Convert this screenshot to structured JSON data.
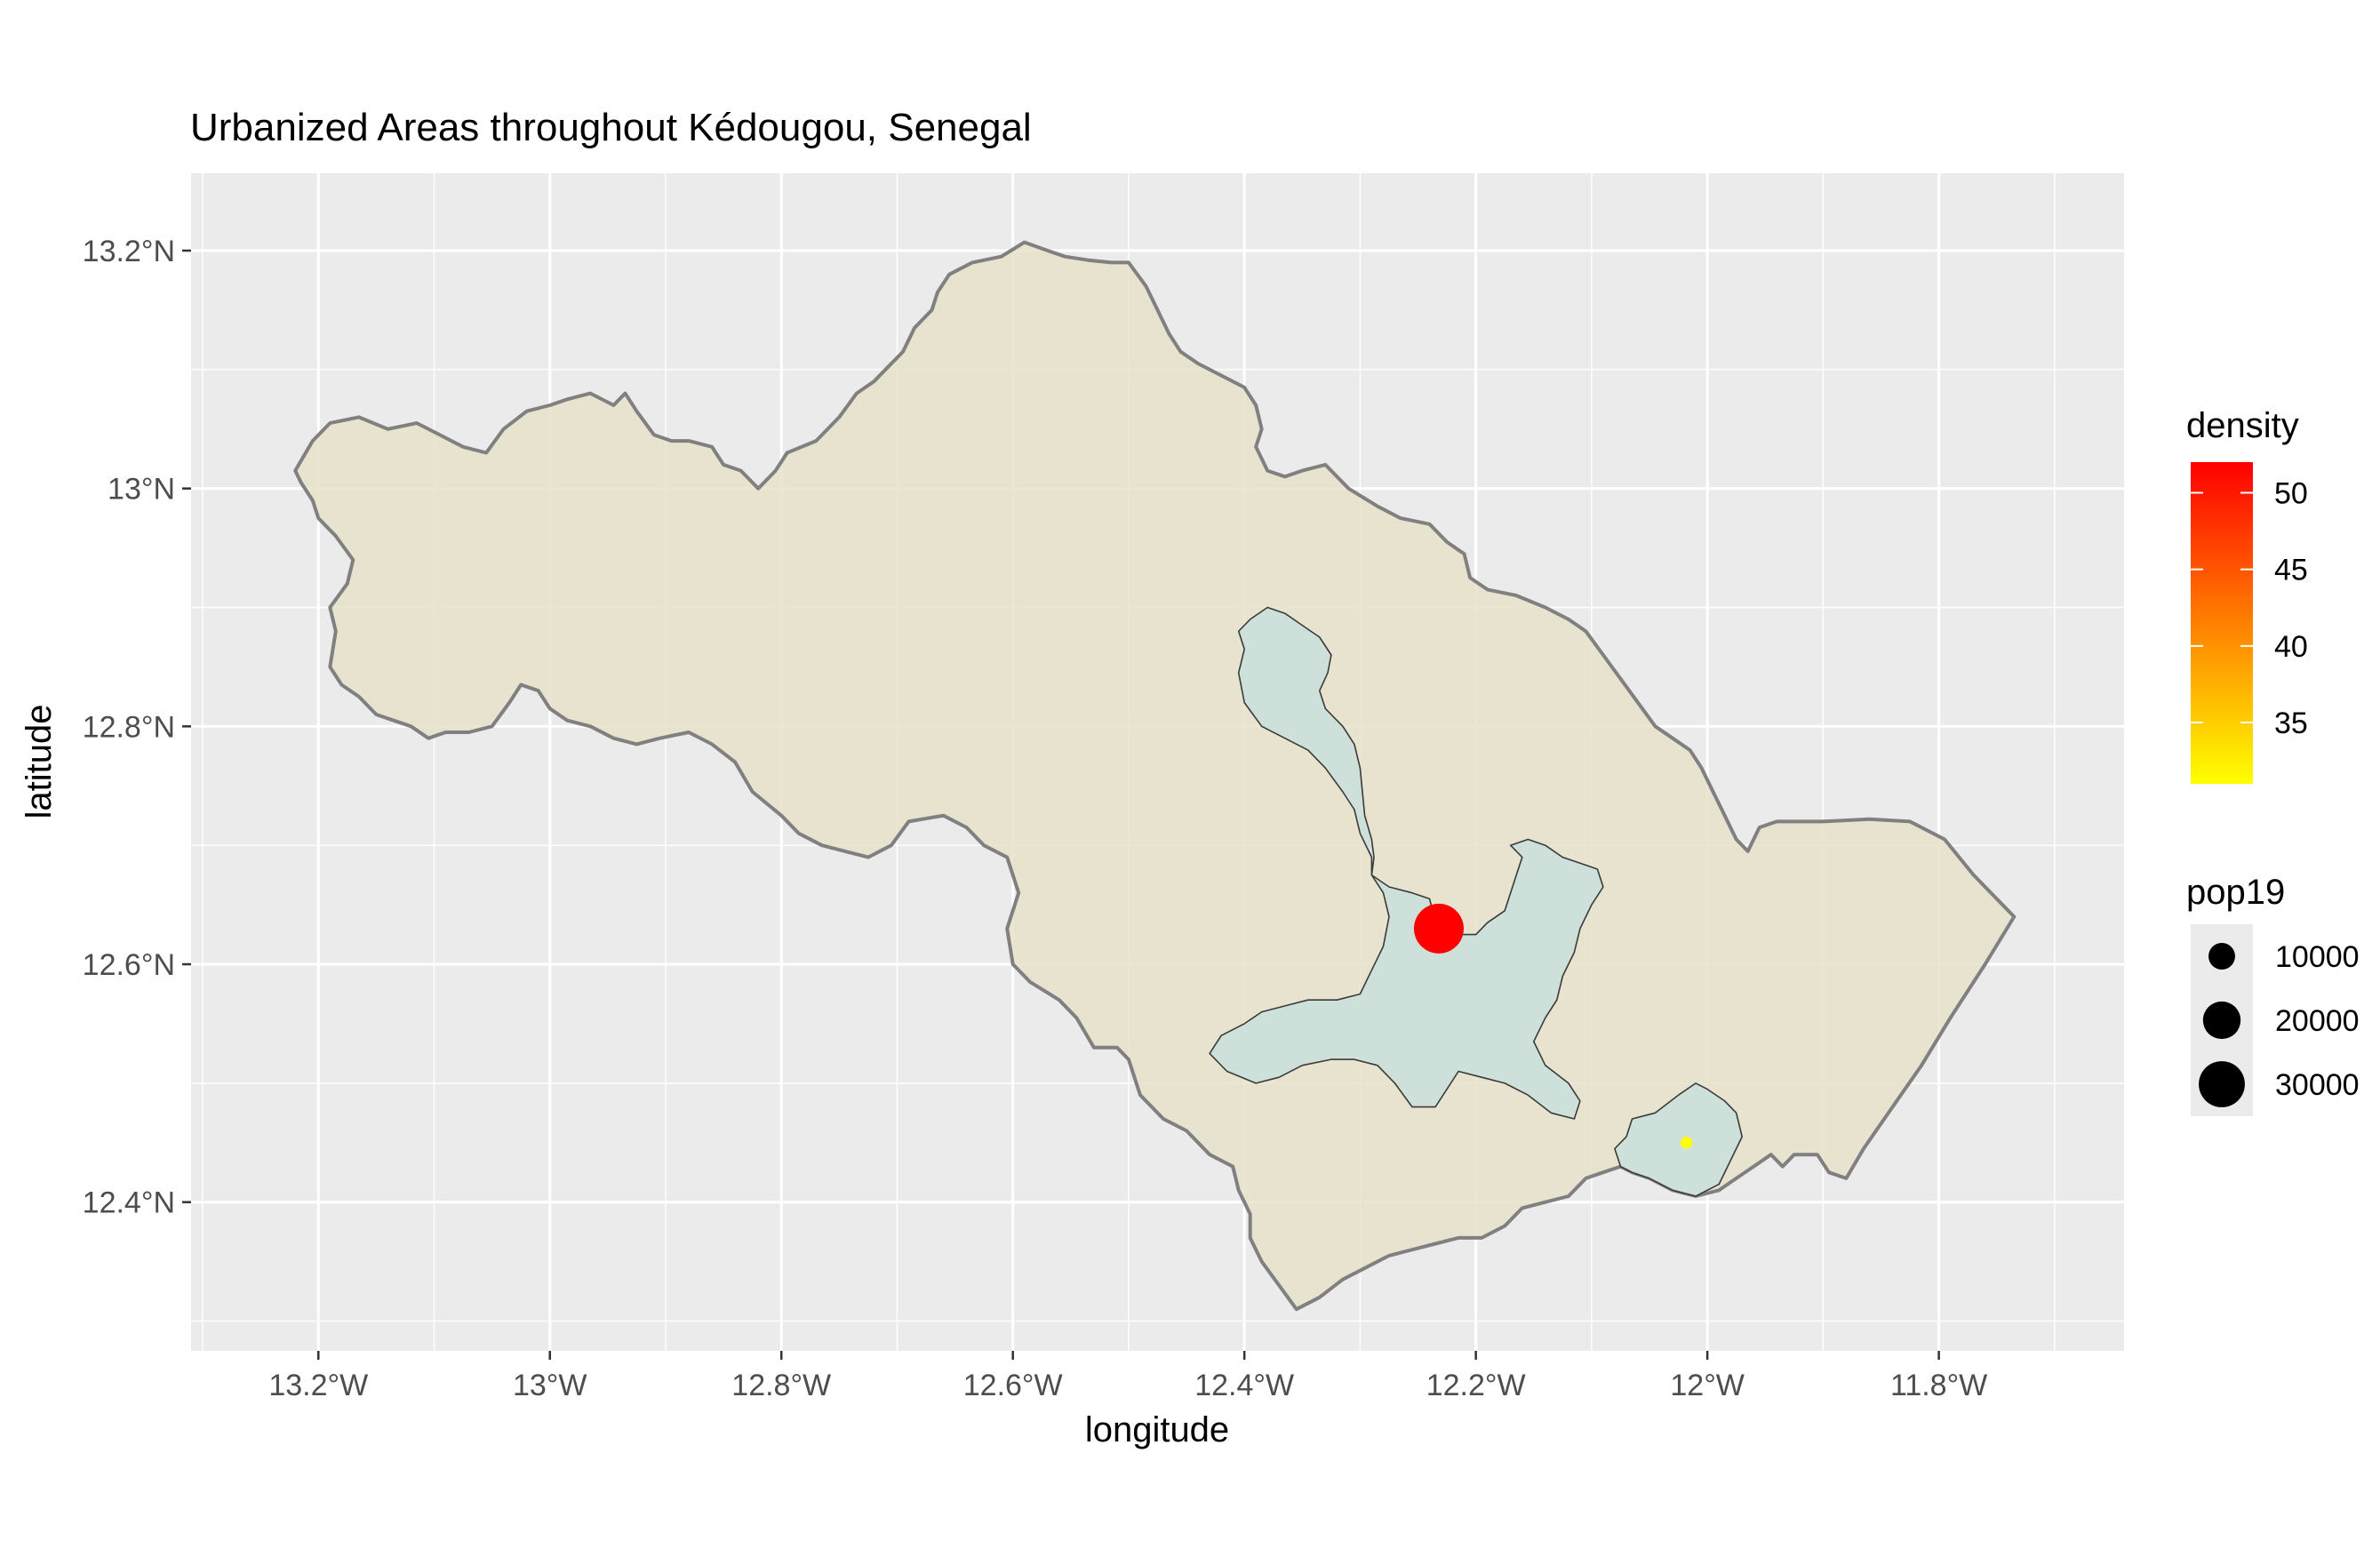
{
  "chart_data": {
    "type": "map",
    "title": "Urbanized Areas throughout Kédougou, Senegal",
    "xlabel": "longitude",
    "ylabel": "latitude",
    "xlim": [
      -13.31,
      -11.64
    ],
    "ylim": [
      12.275,
      13.265
    ],
    "x_ticks": [
      {
        "value": -13.2,
        "label": "13.2°W"
      },
      {
        "value": -13.0,
        "label": "13°W"
      },
      {
        "value": -12.8,
        "label": "12.8°W"
      },
      {
        "value": -12.6,
        "label": "12.6°W"
      },
      {
        "value": -12.4,
        "label": "12.4°W"
      },
      {
        "value": -12.2,
        "label": "12.2°W"
      },
      {
        "value": -12.0,
        "label": "12°W"
      },
      {
        "value": -11.8,
        "label": "11.8°W"
      }
    ],
    "y_ticks": [
      {
        "value": 12.4,
        "label": "12.4°N"
      },
      {
        "value": 12.6,
        "label": "12.6°N"
      },
      {
        "value": 12.8,
        "label": "12.8°N"
      },
      {
        "value": 13.0,
        "label": "13°N"
      },
      {
        "value": 13.2,
        "label": "13.2°N"
      }
    ],
    "grid": true,
    "panel_background": "#ebebeb",
    "grid_color": "#ffffff",
    "region_fill": "#e8e2c9",
    "region_stroke": "#808080",
    "urban_fill": "#ccdfda",
    "region_outline": [
      [
        -13.22,
        13.015
      ],
      [
        -13.205,
        13.04
      ],
      [
        -13.19,
        13.055
      ],
      [
        -13.165,
        13.06
      ],
      [
        -13.14,
        13.05
      ],
      [
        -13.115,
        13.055
      ],
      [
        -13.095,
        13.045
      ],
      [
        -13.075,
        13.035
      ],
      [
        -13.055,
        13.03
      ],
      [
        -13.04,
        13.05
      ],
      [
        -13.02,
        13.065
      ],
      [
        -13.0,
        13.07
      ],
      [
        -12.985,
        13.075
      ],
      [
        -12.965,
        13.08
      ],
      [
        -12.945,
        13.07
      ],
      [
        -12.935,
        13.08
      ],
      [
        -12.925,
        13.065
      ],
      [
        -12.91,
        13.045
      ],
      [
        -12.895,
        13.04
      ],
      [
        -12.88,
        13.04
      ],
      [
        -12.86,
        13.035
      ],
      [
        -12.85,
        13.02
      ],
      [
        -12.835,
        13.015
      ],
      [
        -12.82,
        13.0
      ],
      [
        -12.805,
        13.015
      ],
      [
        -12.795,
        13.03
      ],
      [
        -12.77,
        13.04
      ],
      [
        -12.75,
        13.06
      ],
      [
        -12.735,
        13.08
      ],
      [
        -12.72,
        13.09
      ],
      [
        -12.71,
        13.1
      ],
      [
        -12.695,
        13.115
      ],
      [
        -12.685,
        13.135
      ],
      [
        -12.67,
        13.15
      ],
      [
        -12.665,
        13.165
      ],
      [
        -12.655,
        13.18
      ],
      [
        -12.635,
        13.19
      ],
      [
        -12.61,
        13.195
      ],
      [
        -12.59,
        13.207
      ],
      [
        -12.57,
        13.2
      ],
      [
        -12.555,
        13.195
      ],
      [
        -12.535,
        13.192
      ],
      [
        -12.515,
        13.19
      ],
      [
        -12.5,
        13.19
      ],
      [
        -12.485,
        13.17
      ],
      [
        -12.475,
        13.15
      ],
      [
        -12.465,
        13.13
      ],
      [
        -12.455,
        13.115
      ],
      [
        -12.44,
        13.105
      ],
      [
        -12.42,
        13.095
      ],
      [
        -12.4,
        13.085
      ],
      [
        -12.39,
        13.07
      ],
      [
        -12.385,
        13.05
      ],
      [
        -12.39,
        13.035
      ],
      [
        -12.38,
        13.015
      ],
      [
        -12.365,
        13.01
      ],
      [
        -12.35,
        13.015
      ],
      [
        -12.33,
        13.02
      ],
      [
        -12.31,
        13.0
      ],
      [
        -12.285,
        12.985
      ],
      [
        -12.265,
        12.975
      ],
      [
        -12.24,
        12.97
      ],
      [
        -12.225,
        12.955
      ],
      [
        -12.21,
        12.945
      ],
      [
        -12.205,
        12.925
      ],
      [
        -12.19,
        12.915
      ],
      [
        -12.165,
        12.91
      ],
      [
        -12.14,
        12.9
      ],
      [
        -12.12,
        12.89
      ],
      [
        -12.105,
        12.88
      ],
      [
        -12.09,
        12.86
      ],
      [
        -12.075,
        12.84
      ],
      [
        -12.06,
        12.82
      ],
      [
        -12.045,
        12.8
      ],
      [
        -12.03,
        12.79
      ],
      [
        -12.015,
        12.78
      ],
      [
        -12.005,
        12.765
      ],
      [
        -11.995,
        12.745
      ],
      [
        -11.985,
        12.725
      ],
      [
        -11.975,
        12.705
      ],
      [
        -11.965,
        12.695
      ],
      [
        -11.955,
        12.715
      ],
      [
        -11.94,
        12.72
      ],
      [
        -11.9,
        12.72
      ],
      [
        -11.86,
        12.722
      ],
      [
        -11.825,
        12.72
      ],
      [
        -11.795,
        12.705
      ],
      [
        -11.77,
        12.675
      ],
      [
        -11.735,
        12.64
      ],
      [
        -11.76,
        12.6
      ],
      [
        -11.79,
        12.555
      ],
      [
        -11.815,
        12.515
      ],
      [
        -11.84,
        12.48
      ],
      [
        -11.865,
        12.445
      ],
      [
        -11.88,
        12.42
      ],
      [
        -11.895,
        12.425
      ],
      [
        -11.905,
        12.44
      ],
      [
        -11.925,
        12.44
      ],
      [
        -11.935,
        12.43
      ],
      [
        -11.945,
        12.44
      ],
      [
        -11.96,
        12.43
      ],
      [
        -11.975,
        12.42
      ],
      [
        -11.99,
        12.41
      ],
      [
        -12.01,
        12.405
      ],
      [
        -12.03,
        12.41
      ],
      [
        -12.05,
        12.42
      ],
      [
        -12.065,
        12.425
      ],
      [
        -12.075,
        12.43
      ],
      [
        -12.09,
        12.425
      ],
      [
        -12.105,
        12.42
      ],
      [
        -12.12,
        12.405
      ],
      [
        -12.14,
        12.4
      ],
      [
        -12.16,
        12.395
      ],
      [
        -12.175,
        12.38
      ],
      [
        -12.195,
        12.37
      ],
      [
        -12.215,
        12.37
      ],
      [
        -12.235,
        12.365
      ],
      [
        -12.255,
        12.36
      ],
      [
        -12.275,
        12.355
      ],
      [
        -12.295,
        12.345
      ],
      [
        -12.315,
        12.335
      ],
      [
        -12.335,
        12.32
      ],
      [
        -12.355,
        12.31
      ],
      [
        -12.37,
        12.33
      ],
      [
        -12.385,
        12.35
      ],
      [
        -12.395,
        12.37
      ],
      [
        -12.395,
        12.39
      ],
      [
        -12.405,
        12.41
      ],
      [
        -12.41,
        12.43
      ],
      [
        -12.43,
        12.44
      ],
      [
        -12.45,
        12.46
      ],
      [
        -12.47,
        12.47
      ],
      [
        -12.49,
        12.49
      ],
      [
        -12.5,
        12.52
      ],
      [
        -12.51,
        12.53
      ],
      [
        -12.53,
        12.53
      ],
      [
        -12.545,
        12.555
      ],
      [
        -12.56,
        12.57
      ],
      [
        -12.585,
        12.585
      ],
      [
        -12.6,
        12.6
      ],
      [
        -12.605,
        12.63
      ],
      [
        -12.595,
        12.66
      ],
      [
        -12.605,
        12.69
      ],
      [
        -12.625,
        12.7
      ],
      [
        -12.64,
        12.715
      ],
      [
        -12.66,
        12.725
      ],
      [
        -12.69,
        12.72
      ],
      [
        -12.705,
        12.7
      ],
      [
        -12.725,
        12.69
      ],
      [
        -12.745,
        12.695
      ],
      [
        -12.765,
        12.7
      ],
      [
        -12.785,
        12.71
      ],
      [
        -12.8,
        12.725
      ],
      [
        -12.825,
        12.745
      ],
      [
        -12.84,
        12.77
      ],
      [
        -12.86,
        12.785
      ],
      [
        -12.88,
        12.795
      ],
      [
        -12.905,
        12.79
      ],
      [
        -12.925,
        12.785
      ],
      [
        -12.945,
        12.79
      ],
      [
        -12.965,
        12.8
      ],
      [
        -12.985,
        12.805
      ],
      [
        -13.0,
        12.815
      ],
      [
        -13.01,
        12.83
      ],
      [
        -13.025,
        12.835
      ],
      [
        -13.035,
        12.82
      ],
      [
        -13.05,
        12.8
      ],
      [
        -13.07,
        12.795
      ],
      [
        -13.09,
        12.795
      ],
      [
        -13.105,
        12.79
      ],
      [
        -13.12,
        12.8
      ],
      [
        -13.135,
        12.805
      ],
      [
        -13.15,
        12.81
      ],
      [
        -13.165,
        12.825
      ],
      [
        -13.18,
        12.835
      ],
      [
        -13.19,
        12.85
      ],
      [
        -13.185,
        12.88
      ],
      [
        -13.19,
        12.9
      ],
      [
        -13.175,
        12.92
      ],
      [
        -13.17,
        12.94
      ],
      [
        -13.185,
        12.96
      ],
      [
        -13.2,
        12.975
      ],
      [
        -13.205,
        12.99
      ],
      [
        -13.215,
        13.005
      ],
      [
        -13.22,
        13.015
      ]
    ],
    "urban_areas": [
      [
        [
          -12.395,
          12.89
        ],
        [
          -12.38,
          12.9
        ],
        [
          -12.365,
          12.895
        ],
        [
          -12.35,
          12.885
        ],
        [
          -12.335,
          12.875
        ],
        [
          -12.325,
          12.86
        ],
        [
          -12.328,
          12.845
        ],
        [
          -12.335,
          12.83
        ],
        [
          -12.33,
          12.815
        ],
        [
          -12.315,
          12.8
        ],
        [
          -12.305,
          12.785
        ],
        [
          -12.3,
          12.765
        ],
        [
          -12.298,
          12.745
        ],
        [
          -12.296,
          12.725
        ],
        [
          -12.29,
          12.705
        ],
        [
          -12.288,
          12.69
        ],
        [
          -12.29,
          12.675
        ],
        [
          -12.275,
          12.665
        ],
        [
          -12.255,
          12.66
        ],
        [
          -12.24,
          12.655
        ],
        [
          -12.235,
          12.635
        ],
        [
          -12.22,
          12.625
        ],
        [
          -12.2,
          12.625
        ],
        [
          -12.19,
          12.635
        ],
        [
          -12.175,
          12.645
        ],
        [
          -12.17,
          12.66
        ],
        [
          -12.165,
          12.675
        ],
        [
          -12.16,
          12.69
        ],
        [
          -12.17,
          12.7
        ],
        [
          -12.155,
          12.705
        ],
        [
          -12.14,
          12.7
        ],
        [
          -12.125,
          12.69
        ],
        [
          -12.11,
          12.685
        ],
        [
          -12.095,
          12.68
        ],
        [
          -12.09,
          12.665
        ],
        [
          -12.1,
          12.65
        ],
        [
          -12.11,
          12.63
        ],
        [
          -12.115,
          12.61
        ],
        [
          -12.125,
          12.59
        ],
        [
          -12.13,
          12.57
        ],
        [
          -12.14,
          12.555
        ],
        [
          -12.15,
          12.535
        ],
        [
          -12.14,
          12.515
        ],
        [
          -12.12,
          12.5
        ],
        [
          -12.11,
          12.485
        ],
        [
          -12.115,
          12.47
        ],
        [
          -12.135,
          12.475
        ],
        [
          -12.155,
          12.49
        ],
        [
          -12.175,
          12.5
        ],
        [
          -12.195,
          12.505
        ],
        [
          -12.215,
          12.51
        ],
        [
          -12.225,
          12.495
        ],
        [
          -12.235,
          12.48
        ],
        [
          -12.255,
          12.48
        ],
        [
          -12.27,
          12.5
        ],
        [
          -12.285,
          12.515
        ],
        [
          -12.305,
          12.52
        ],
        [
          -12.325,
          12.52
        ],
        [
          -12.35,
          12.515
        ],
        [
          -12.37,
          12.505
        ],
        [
          -12.39,
          12.5
        ],
        [
          -12.415,
          12.51
        ],
        [
          -12.43,
          12.525
        ],
        [
          -12.42,
          12.54
        ],
        [
          -12.4,
          12.55
        ],
        [
          -12.385,
          12.56
        ],
        [
          -12.365,
          12.565
        ],
        [
          -12.345,
          12.57
        ],
        [
          -12.32,
          12.57
        ],
        [
          -12.3,
          12.575
        ],
        [
          -12.29,
          12.595
        ],
        [
          -12.28,
          12.615
        ],
        [
          -12.275,
          12.64
        ],
        [
          -12.28,
          12.66
        ],
        [
          -12.29,
          12.675
        ],
        [
          -12.29,
          12.69
        ],
        [
          -12.3,
          12.71
        ],
        [
          -12.305,
          12.73
        ],
        [
          -12.315,
          12.745
        ],
        [
          -12.33,
          12.765
        ],
        [
          -12.345,
          12.78
        ],
        [
          -12.365,
          12.79
        ],
        [
          -12.385,
          12.8
        ],
        [
          -12.4,
          12.82
        ],
        [
          -12.405,
          12.845
        ],
        [
          -12.4,
          12.865
        ],
        [
          -12.405,
          12.88
        ],
        [
          -12.395,
          12.89
        ]
      ],
      [
        [
          -12.065,
          12.47
        ],
        [
          -12.045,
          12.475
        ],
        [
          -12.025,
          12.49
        ],
        [
          -12.01,
          12.5
        ],
        [
          -12.0,
          12.495
        ],
        [
          -11.985,
          12.485
        ],
        [
          -11.975,
          12.475
        ],
        [
          -11.97,
          12.455
        ],
        [
          -11.98,
          12.435
        ],
        [
          -11.99,
          12.415
        ],
        [
          -12.01,
          12.405
        ],
        [
          -12.03,
          12.41
        ],
        [
          -12.05,
          12.42
        ],
        [
          -12.065,
          12.425
        ],
        [
          -12.075,
          12.43
        ],
        [
          -12.08,
          12.445
        ],
        [
          -12.07,
          12.455
        ],
        [
          -12.065,
          12.47
        ]
      ]
    ],
    "points": [
      {
        "x": -12.232,
        "y": 12.63,
        "pop19": 35000,
        "density": 52
      },
      {
        "x": -12.018,
        "y": 12.45,
        "pop19": 2000,
        "density": 31
      }
    ],
    "legend_density": {
      "title": "density",
      "min": 31,
      "max": 52,
      "low_color": "#ffff00",
      "high_color": "#ff0000",
      "ticks": [
        {
          "value": 35,
          "label": "35"
        },
        {
          "value": 40,
          "label": "40"
        },
        {
          "value": 45,
          "label": "45"
        },
        {
          "value": 50,
          "label": "50"
        }
      ]
    },
    "legend_pop19": {
      "title": "pop19",
      "items": [
        {
          "value": 10000,
          "label": "10000"
        },
        {
          "value": 20000,
          "label": "20000"
        },
        {
          "value": 30000,
          "label": "30000"
        }
      ]
    }
  }
}
